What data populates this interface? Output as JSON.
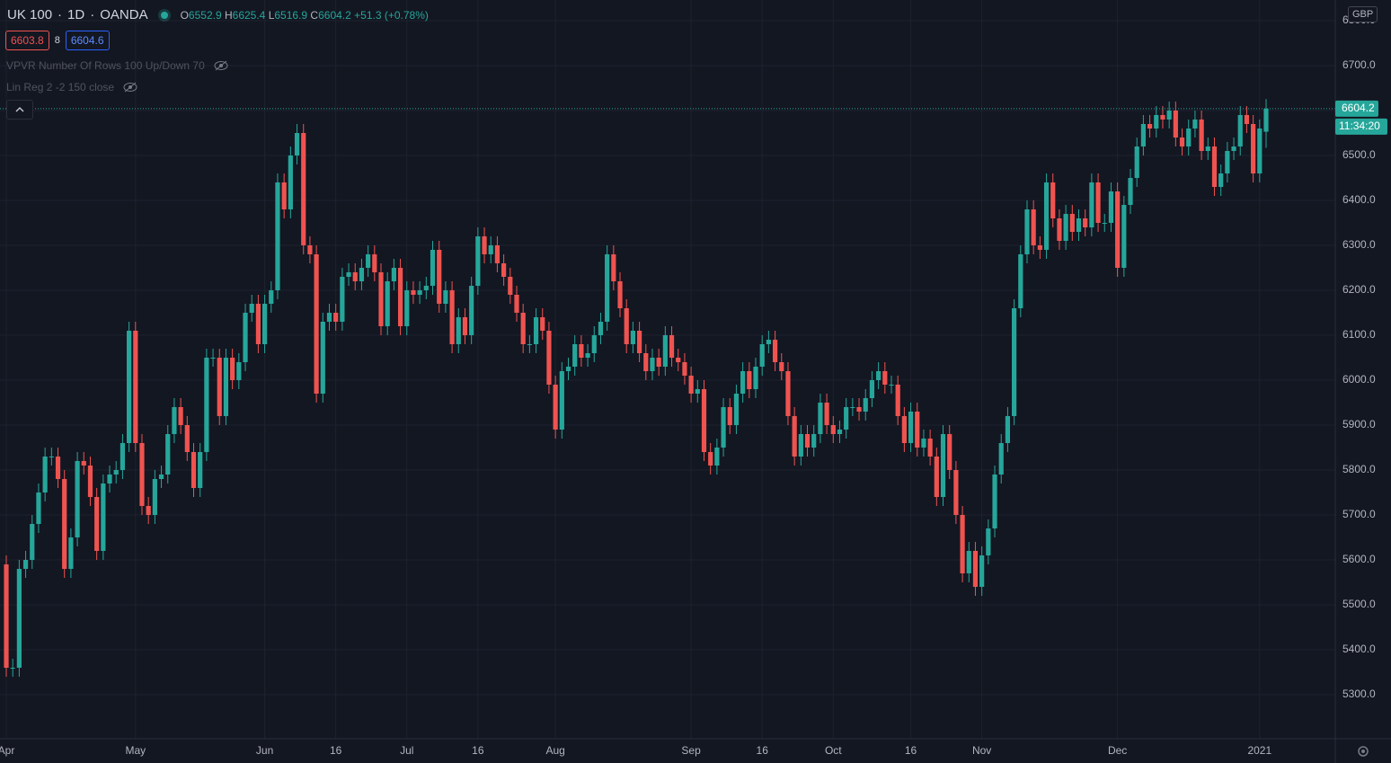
{
  "header": {
    "symbol": "UK 100",
    "interval": "1D",
    "exchange": "OANDA",
    "ohlc_labels": [
      "O",
      "H",
      "L",
      "C"
    ],
    "change": "+51.3 (+0.78%)",
    "sell": "6603.8",
    "spread": "8",
    "buy": "6604.6",
    "currency": "GBP",
    "countdown": "11:34:20"
  },
  "indicators": [
    "VPVR Number Of Rows 100 Up/Down 70",
    "Lin Reg 2 -2 150 close"
  ],
  "chart_data": {
    "type": "candlestick",
    "up_color": "#26a69a",
    "down_color": "#ef5350",
    "grid": true,
    "ylim": [
      5202,
      6846
    ],
    "yticks": [
      {
        "value": 5300,
        "label": "5300.0"
      },
      {
        "value": 5400,
        "label": "5400.0"
      },
      {
        "value": 5500,
        "label": "5500.0"
      },
      {
        "value": 5600,
        "label": "5600.0"
      },
      {
        "value": 5700,
        "label": "5700.0"
      },
      {
        "value": 5800,
        "label": "5800.0"
      },
      {
        "value": 5900,
        "label": "5900.0"
      },
      {
        "value": 6000,
        "label": "6000.0"
      },
      {
        "value": 6100,
        "label": "6100.0"
      },
      {
        "value": 6200,
        "label": "6200.0"
      },
      {
        "value": 6300,
        "label": "6300.0"
      },
      {
        "value": 6400,
        "label": "6400.0"
      },
      {
        "value": 6500,
        "label": "6500.0"
      },
      {
        "value": 6600,
        "label": "6600.0"
      },
      {
        "value": 6700,
        "label": "6700.0"
      },
      {
        "value": 6800,
        "label": "6800.0"
      }
    ],
    "categories": [
      "Apr",
      null,
      null,
      null,
      null,
      null,
      null,
      null,
      null,
      null,
      null,
      null,
      null,
      null,
      null,
      null,
      null,
      null,
      null,
      null,
      "May",
      null,
      null,
      null,
      null,
      null,
      null,
      null,
      null,
      null,
      null,
      null,
      null,
      null,
      null,
      null,
      null,
      null,
      null,
      null,
      "Jun",
      null,
      null,
      null,
      null,
      null,
      null,
      null,
      null,
      null,
      null,
      "16",
      null,
      null,
      null,
      null,
      null,
      null,
      null,
      null,
      null,
      null,
      "Jul",
      null,
      null,
      null,
      null,
      null,
      null,
      null,
      null,
      null,
      null,
      "16",
      null,
      null,
      null,
      null,
      null,
      null,
      null,
      null,
      null,
      null,
      null,
      "Aug",
      null,
      null,
      null,
      null,
      null,
      null,
      null,
      null,
      null,
      null,
      null,
      null,
      null,
      null,
      null,
      null,
      null,
      null,
      null,
      null,
      "Sep",
      null,
      null,
      null,
      null,
      null,
      null,
      null,
      null,
      null,
      null,
      "16",
      null,
      null,
      null,
      null,
      null,
      null,
      null,
      null,
      null,
      null,
      "Oct",
      null,
      null,
      null,
      null,
      null,
      null,
      null,
      null,
      null,
      null,
      null,
      "16",
      null,
      null,
      null,
      null,
      null,
      null,
      null,
      null,
      null,
      null,
      "Nov",
      null,
      null,
      null,
      null,
      null,
      null,
      null,
      null,
      null,
      null,
      null,
      null,
      null,
      null,
      null,
      null,
      null,
      null,
      null,
      null,
      "Dec",
      null,
      null,
      null,
      null,
      null,
      null,
      null,
      null,
      null,
      null,
      null,
      null,
      null,
      null,
      null,
      null,
      null,
      null,
      null,
      null,
      null,
      "2021",
      null
    ],
    "open": [
      5590,
      5360,
      5360,
      5580,
      5600,
      5680,
      5750,
      5830,
      5830,
      5780,
      5580,
      5650,
      5820,
      5810,
      5740,
      5620,
      5770,
      5790,
      5800,
      5860,
      6110,
      5860,
      5720,
      5700,
      5780,
      5790,
      5880,
      5940,
      5900,
      5840,
      5760,
      5840,
      6050,
      6050,
      5920,
      6050,
      6000,
      6040,
      6150,
      6170,
      6080,
      6170,
      6200,
      6440,
      6380,
      6500,
      6550,
      6300,
      6280,
      5970,
      6130,
      6150,
      6130,
      6230,
      6240,
      6220,
      6250,
      6280,
      6240,
      6120,
      6220,
      6250,
      6120,
      6200,
      6190,
      6200,
      6210,
      6290,
      6170,
      6200,
      6080,
      6140,
      6100,
      6210,
      6320,
      6280,
      6300,
      6260,
      6230,
      6190,
      6150,
      6080,
      6080,
      6140,
      6110,
      5990,
      5890,
      6020,
      6030,
      6080,
      6050,
      6060,
      6100,
      6130,
      6280,
      6220,
      6160,
      6080,
      6110,
      6060,
      6020,
      6050,
      6030,
      6100,
      6050,
      6040,
      6010,
      5970,
      5980,
      5840,
      5810,
      5850,
      5940,
      5900,
      5970,
      6020,
      5980,
      6030,
      6080,
      6090,
      6040,
      6020,
      5920,
      5830,
      5880,
      5850,
      5880,
      5950,
      5900,
      5880,
      5890,
      5940,
      5940,
      5930,
      5960,
      6000,
      6020,
      5990,
      5990,
      5920,
      5860,
      5930,
      5850,
      5870,
      5830,
      5740,
      5880,
      5800,
      5700,
      5570,
      5620,
      5540,
      5610,
      5670,
      5790,
      5860,
      5920,
      6160,
      6280,
      6380,
      6300,
      6290,
      6440,
      6360,
      6310,
      6370,
      6330,
      6360,
      6340,
      6440,
      6350,
      6350,
      6420,
      6250,
      6390,
      6450,
      6520,
      6570,
      6560,
      6590,
      6580,
      6600,
      6540,
      6520,
      6560,
      6580,
      6510,
      6520,
      6430,
      6460,
      6510,
      6520,
      6590,
      6570,
      6460,
      6552.9
    ],
    "high": [
      5610,
      5380,
      5600,
      5620,
      5700,
      5770,
      5850,
      5850,
      5850,
      5800,
      5670,
      5840,
      5840,
      5830,
      5760,
      5790,
      5810,
      5820,
      5880,
      6130,
      6130,
      5880,
      5740,
      5800,
      5810,
      5900,
      5960,
      5960,
      5920,
      5860,
      5860,
      6070,
      6070,
      6070,
      6070,
      6070,
      6060,
      6170,
      6190,
      6190,
      6190,
      6220,
      6460,
      6460,
      6520,
      6570,
      6570,
      6320,
      6300,
      6150,
      6170,
      6170,
      6250,
      6260,
      6260,
      6270,
      6300,
      6300,
      6260,
      6240,
      6270,
      6270,
      6220,
      6220,
      6220,
      6230,
      6310,
      6310,
      6220,
      6220,
      6160,
      6160,
      6230,
      6340,
      6340,
      6320,
      6320,
      6280,
      6250,
      6210,
      6170,
      6100,
      6160,
      6160,
      6130,
      6010,
      6040,
      6050,
      6100,
      6100,
      6080,
      6120,
      6150,
      6300,
      6300,
      6240,
      6180,
      6130,
      6130,
      6080,
      6070,
      6070,
      6120,
      6120,
      6070,
      6060,
      6030,
      6000,
      6000,
      5860,
      5870,
      5960,
      5960,
      5990,
      6040,
      6040,
      6050,
      6100,
      6110,
      6110,
      6060,
      6040,
      5940,
      5900,
      5900,
      5900,
      5970,
      5970,
      5920,
      5910,
      5960,
      5960,
      5960,
      5980,
      6020,
      6040,
      6040,
      6010,
      6010,
      5940,
      5950,
      5950,
      5890,
      5890,
      5850,
      5900,
      5900,
      5820,
      5720,
      5640,
      5640,
      5630,
      5690,
      5810,
      5880,
      5940,
      6180,
      6300,
      6400,
      6400,
      6320,
      6460,
      6460,
      6380,
      6390,
      6390,
      6380,
      6380,
      6460,
      6460,
      6370,
      6440,
      6440,
      6410,
      6470,
      6540,
      6590,
      6590,
      6610,
      6610,
      6620,
      6620,
      6560,
      6580,
      6600,
      6600,
      6540,
      6540,
      6480,
      6530,
      6540,
      6610,
      6610,
      6590,
      6580,
      6625.4
    ],
    "low": [
      5340,
      5340,
      5340,
      5560,
      5580,
      5660,
      5730,
      5810,
      5760,
      5560,
      5560,
      5630,
      5790,
      5720,
      5600,
      5600,
      5750,
      5770,
      5780,
      5840,
      5840,
      5700,
      5680,
      5680,
      5760,
      5770,
      5860,
      5880,
      5820,
      5740,
      5740,
      5820,
      6030,
      5900,
      5900,
      5980,
      5980,
      6020,
      6130,
      6060,
      6060,
      6150,
      6180,
      6360,
      6360,
      6480,
      6280,
      6260,
      5950,
      5950,
      6110,
      6110,
      6110,
      6210,
      6200,
      6200,
      6230,
      6220,
      6100,
      6100,
      6200,
      6100,
      6100,
      6170,
      6170,
      6180,
      6190,
      6150,
      6150,
      6060,
      6060,
      6080,
      6080,
      6190,
      6260,
      6260,
      6240,
      6210,
      6170,
      6130,
      6060,
      6060,
      6060,
      6090,
      5970,
      5870,
      5870,
      6000,
      6010,
      6030,
      6030,
      6040,
      6080,
      6110,
      6200,
      6140,
      6060,
      6060,
      6040,
      6000,
      6000,
      6010,
      6010,
      6030,
      6020,
      5990,
      5950,
      5950,
      5820,
      5790,
      5790,
      5830,
      5880,
      5880,
      5950,
      5960,
      5960,
      6010,
      6060,
      6020,
      6000,
      5900,
      5810,
      5810,
      5830,
      5830,
      5860,
      5880,
      5860,
      5860,
      5870,
      5920,
      5910,
      5910,
      5940,
      5980,
      5970,
      5970,
      5900,
      5840,
      5840,
      5830,
      5830,
      5810,
      5720,
      5720,
      5780,
      5680,
      5550,
      5550,
      5520,
      5520,
      5590,
      5650,
      5770,
      5840,
      5900,
      6140,
      6260,
      6280,
      6270,
      6270,
      6340,
      6290,
      6290,
      6310,
      6310,
      6320,
      6320,
      6330,
      6330,
      6330,
      6230,
      6230,
      6370,
      6430,
      6500,
      6540,
      6540,
      6560,
      6560,
      6520,
      6500,
      6500,
      6540,
      6490,
      6490,
      6410,
      6410,
      6440,
      6490,
      6500,
      6550,
      6440,
      6440,
      6516.9
    ],
    "close": [
      5360,
      5360,
      5580,
      5600,
      5680,
      5750,
      5830,
      5830,
      5780,
      5580,
      5650,
      5820,
      5810,
      5740,
      5620,
      5770,
      5790,
      5800,
      5860,
      6110,
      5860,
      5720,
      5700,
      5780,
      5790,
      5880,
      5940,
      5900,
      5840,
      5760,
      5840,
      6050,
      6050,
      5920,
      6050,
      6000,
      6040,
      6150,
      6170,
      6080,
      6170,
      6200,
      6440,
      6380,
      6500,
      6550,
      6300,
      6280,
      5970,
      6130,
      6150,
      6130,
      6230,
      6240,
      6220,
      6250,
      6280,
      6240,
      6120,
      6220,
      6250,
      6120,
      6200,
      6190,
      6200,
      6210,
      6290,
      6170,
      6200,
      6080,
      6140,
      6100,
      6210,
      6320,
      6280,
      6300,
      6260,
      6230,
      6190,
      6150,
      6080,
      6080,
      6140,
      6110,
      5990,
      5890,
      6020,
      6030,
      6080,
      6050,
      6060,
      6100,
      6130,
      6280,
      6220,
      6160,
      6080,
      6110,
      6060,
      6020,
      6050,
      6030,
      6100,
      6050,
      6040,
      6010,
      5970,
      5980,
      5840,
      5810,
      5850,
      5940,
      5900,
      5970,
      6020,
      5980,
      6030,
      6080,
      6090,
      6040,
      6020,
      5920,
      5830,
      5880,
      5850,
      5880,
      5950,
      5900,
      5880,
      5890,
      5940,
      5940,
      5930,
      5960,
      6000,
      6020,
      5990,
      5990,
      5920,
      5860,
      5930,
      5850,
      5870,
      5830,
      5740,
      5880,
      5800,
      5700,
      5570,
      5620,
      5540,
      5610,
      5670,
      5790,
      5860,
      5920,
      6160,
      6280,
      6380,
      6300,
      6290,
      6440,
      6360,
      6310,
      6370,
      6330,
      6360,
      6340,
      6440,
      6350,
      6350,
      6420,
      6250,
      6390,
      6450,
      6520,
      6570,
      6560,
      6590,
      6580,
      6600,
      6540,
      6520,
      6560,
      6580,
      6510,
      6520,
      6430,
      6460,
      6510,
      6520,
      6590,
      6570,
      6460,
      6560,
      6604.2
    ]
  }
}
